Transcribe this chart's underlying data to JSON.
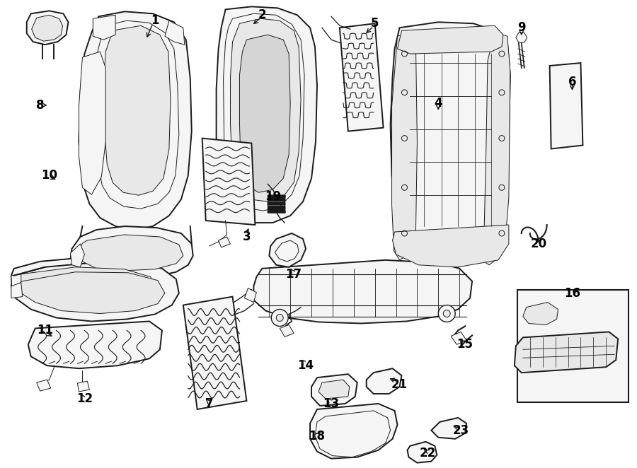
{
  "bg_color": "#ffffff",
  "line_color": "#1a1a1a",
  "fig_width": 9.0,
  "fig_height": 6.62,
  "dpi": 100,
  "lw_main": 1.4,
  "lw_thin": 0.7,
  "face_light": "#f5f5f5",
  "face_mid": "#e8e8e8",
  "face_dark": "#d5d5d5",
  "label_fs": 12
}
